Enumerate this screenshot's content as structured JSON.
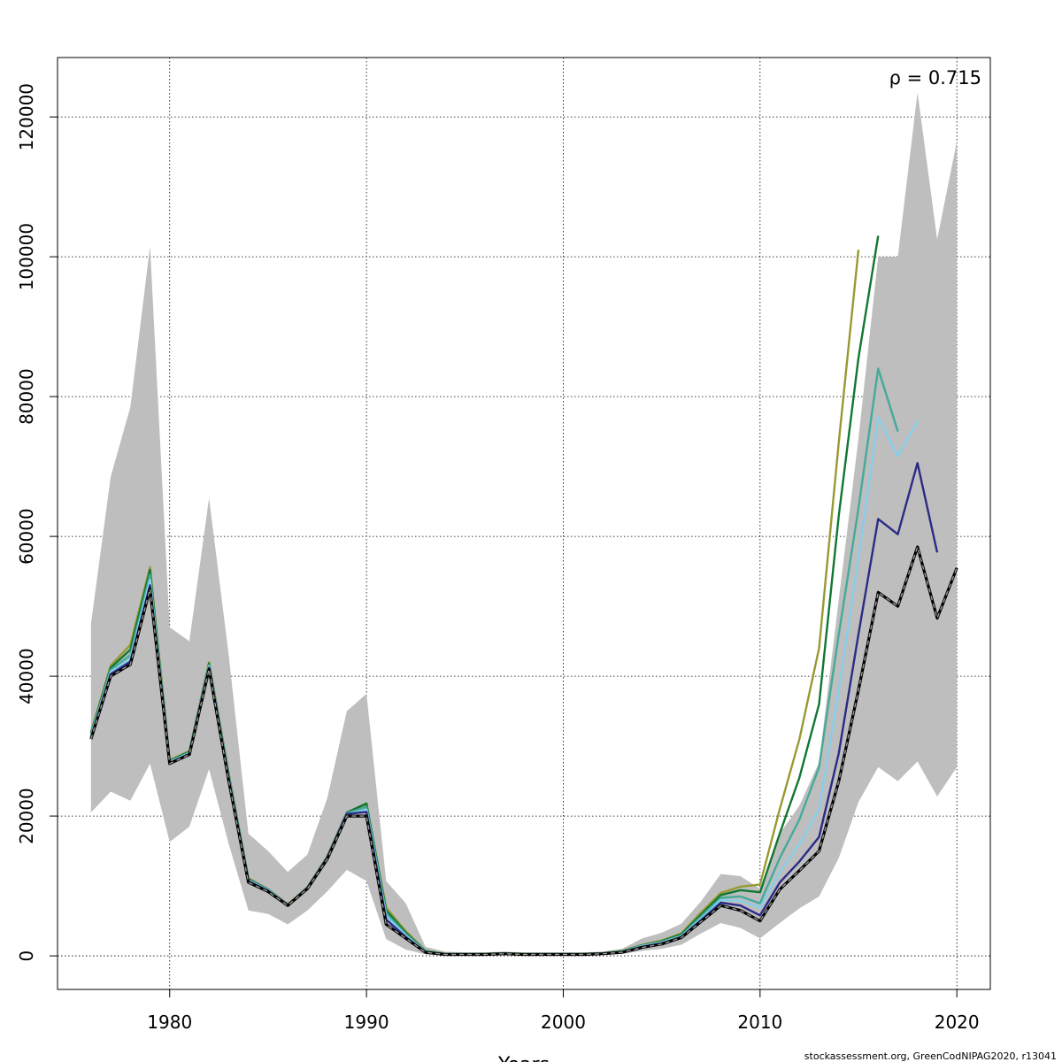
{
  "chart_data": {
    "type": "line",
    "title": "",
    "xlabel": "Years",
    "ylabel": "",
    "xlim": [
      1974.3,
      2021.7
    ],
    "ylim": [
      -4800,
      128500
    ],
    "xticks": [
      1980,
      1990,
      2000,
      2010,
      2020
    ],
    "yticks": [
      0,
      20000,
      40000,
      60000,
      80000,
      100000,
      120000
    ],
    "grid": true,
    "annotation": "ρ = 0.715",
    "credit": "stockassessment.org, GreenCodNIPAG2020, r13041",
    "band": {
      "color": "#bebebe",
      "x": [
        1976,
        1977,
        1978,
        1979,
        1980,
        1981,
        1982,
        1983,
        1984,
        1985,
        1986,
        1987,
        1988,
        1989,
        1990,
        1991,
        1992,
        1993,
        1994,
        1995,
        1996,
        1997,
        1998,
        1999,
        2000,
        2001,
        2002,
        2003,
        2004,
        2005,
        2006,
        2007,
        2008,
        2009,
        2010,
        2011,
        2012,
        2013,
        2014,
        2015,
        2016,
        2017,
        2018,
        2019,
        2020
      ],
      "lower": [
        20500,
        23500,
        22200,
        27500,
        16300,
        18500,
        26700,
        16000,
        6500,
        6000,
        4500,
        6500,
        9200,
        12300,
        10700,
        2400,
        900,
        200,
        100,
        100,
        100,
        100,
        100,
        100,
        100,
        100,
        150,
        300,
        700,
        1000,
        1600,
        3200,
        4700,
        4000,
        2500,
        4700,
        6800,
        8500,
        14000,
        22000,
        27000,
        25000,
        27800,
        22800,
        27000
      ],
      "upper": [
        47500,
        68500,
        78500,
        101500,
        47000,
        45000,
        65500,
        43000,
        17500,
        15000,
        12000,
        14500,
        22500,
        35000,
        37500,
        10700,
        7500,
        1300,
        600,
        500,
        500,
        600,
        500,
        500,
        500,
        500,
        600,
        1000,
        2500,
        3300,
        4600,
        7800,
        11700,
        11400,
        9600,
        17500,
        21500,
        27700,
        51000,
        74000,
        100000,
        100000,
        123500,
        102500,
        116500
      ]
    },
    "series": [
      {
        "key": "base",
        "color": "#333333",
        "dashed": true,
        "x": [
          1976,
          1977,
          1978,
          1979,
          1980,
          1981,
          1982,
          1983,
          1984,
          1985,
          1986,
          1987,
          1988,
          1989,
          1990,
          1991,
          1992,
          1993,
          1994,
          1995,
          1996,
          1997,
          1998,
          1999,
          2000,
          2001,
          2002,
          2003,
          2004,
          2005,
          2006,
          2007,
          2008,
          2009,
          2010,
          2011,
          2012,
          2013,
          2014,
          2015,
          2016,
          2017,
          2018,
          2019,
          2020
        ],
        "values": [
          31000,
          40000,
          41700,
          52500,
          27500,
          28800,
          41000,
          25000,
          10500,
          9200,
          7200,
          9600,
          13800,
          20000,
          20000,
          4500,
          2500,
          500,
          200,
          200,
          200,
          300,
          200,
          200,
          200,
          200,
          300,
          500,
          1200,
          1700,
          2600,
          4900,
          7200,
          6500,
          5000,
          9500,
          12200,
          15000,
          25000,
          38000,
          52000,
          50000,
          58500,
          48300,
          55500
        ]
      },
      {
        "key": "peel1",
        "color": "#2b2b86",
        "x": [
          1976,
          1977,
          1978,
          1979,
          1980,
          1981,
          1982,
          1983,
          1984,
          1985,
          1986,
          1987,
          1988,
          1989,
          1990,
          1991,
          1992,
          1993,
          1994,
          1995,
          1996,
          1997,
          1998,
          1999,
          2000,
          2001,
          2002,
          2003,
          2004,
          2005,
          2006,
          2007,
          2008,
          2009,
          2010,
          2011,
          2012,
          2013,
          2014,
          2015,
          2016,
          2017,
          2018,
          2019
        ],
        "values": [
          31200,
          40300,
          42100,
          53000,
          27600,
          28900,
          41200,
          25300,
          10700,
          9300,
          7300,
          9700,
          14000,
          20300,
          20600,
          5200,
          2700,
          550,
          220,
          220,
          220,
          320,
          220,
          220,
          220,
          220,
          320,
          550,
          1300,
          1800,
          2700,
          5100,
          7600,
          7200,
          5800,
          10500,
          13500,
          17000,
          29000,
          46000,
          62500,
          60300,
          70500,
          57700
        ]
      },
      {
        "key": "peel2",
        "color": "#87ceeb",
        "x": [
          1976,
          1977,
          1978,
          1979,
          1980,
          1981,
          1982,
          1983,
          1984,
          1985,
          1986,
          1987,
          1988,
          1989,
          1990,
          1991,
          1992,
          1993,
          1994,
          1995,
          1996,
          1997,
          1998,
          1999,
          2000,
          2001,
          2002,
          2003,
          2004,
          2005,
          2006,
          2007,
          2008,
          2009,
          2010,
          2011,
          2012,
          2013,
          2014,
          2015,
          2016,
          2017,
          2018
        ],
        "values": [
          31400,
          40600,
          42500,
          53800,
          27700,
          29000,
          41400,
          25500,
          10800,
          9400,
          7300,
          9700,
          14000,
          20300,
          20900,
          5700,
          2900,
          600,
          240,
          240,
          240,
          340,
          240,
          240,
          240,
          240,
          340,
          600,
          1400,
          1900,
          2800,
          5300,
          8000,
          7900,
          6900,
          12000,
          16000,
          21000,
          38000,
          57000,
          77000,
          71500,
          76500
        ]
      },
      {
        "key": "peel3",
        "color": "#44aa99",
        "x": [
          1976,
          1977,
          1978,
          1979,
          1980,
          1981,
          1982,
          1983,
          1984,
          1985,
          1986,
          1987,
          1988,
          1989,
          1990,
          1991,
          1992,
          1993,
          1994,
          1995,
          1996,
          1997,
          1998,
          1999,
          2000,
          2001,
          2002,
          2003,
          2004,
          2005,
          2006,
          2007,
          2008,
          2009,
          2010,
          2011,
          2012,
          2013,
          2014,
          2015,
          2016,
          2017
        ],
        "values": [
          31600,
          40900,
          43000,
          54500,
          27800,
          29100,
          41600,
          25700,
          10900,
          9400,
          7300,
          9700,
          14000,
          20400,
          21300,
          6100,
          3100,
          650,
          260,
          260,
          260,
          360,
          260,
          260,
          260,
          260,
          360,
          650,
          1450,
          2000,
          2900,
          5600,
          8300,
          8500,
          7500,
          14000,
          19500,
          27000,
          46000,
          64000,
          84000,
          75000
        ]
      },
      {
        "key": "peel4",
        "color": "#117733",
        "x": [
          1976,
          1977,
          1978,
          1979,
          1980,
          1981,
          1982,
          1983,
          1984,
          1985,
          1986,
          1987,
          1988,
          1989,
          1990,
          1991,
          1992,
          1993,
          1994,
          1995,
          1996,
          1997,
          1998,
          1999,
          2000,
          2001,
          2002,
          2003,
          2004,
          2005,
          2006,
          2007,
          2008,
          2009,
          2010,
          2011,
          2012,
          2013,
          2014,
          2015,
          2016
        ],
        "values": [
          31800,
          41200,
          43800,
          55200,
          27900,
          29200,
          41800,
          25900,
          11000,
          9500,
          7300,
          9800,
          14100,
          20500,
          21800,
          6500,
          3300,
          700,
          280,
          280,
          280,
          380,
          280,
          280,
          280,
          280,
          380,
          700,
          1500,
          2100,
          3100,
          5900,
          8700,
          9400,
          9100,
          17500,
          25500,
          36000,
          63000,
          85500,
          103000
        ]
      },
      {
        "key": "peel5",
        "color": "#999933",
        "x": [
          1976,
          1977,
          1978,
          1979,
          1980,
          1981,
          1982,
          1983,
          1984,
          1985,
          1986,
          1987,
          1988,
          1989,
          1990,
          1991,
          1992,
          1993,
          1994,
          1995,
          1996,
          1997,
          1998,
          1999,
          2000,
          2001,
          2002,
          2003,
          2004,
          2005,
          2006,
          2007,
          2008,
          2009,
          2010,
          2011,
          2012,
          2013,
          2014,
          2015
        ],
        "values": [
          32000,
          41500,
          44500,
          55600,
          28000,
          29300,
          42000,
          26000,
          11100,
          9500,
          7400,
          9800,
          14200,
          20500,
          21500,
          6900,
          3500,
          750,
          300,
          300,
          300,
          400,
          300,
          300,
          300,
          300,
          400,
          750,
          1550,
          2200,
          3200,
          6200,
          9000,
          9900,
          10200,
          21000,
          31000,
          44000,
          73500,
          101000
        ]
      }
    ]
  }
}
